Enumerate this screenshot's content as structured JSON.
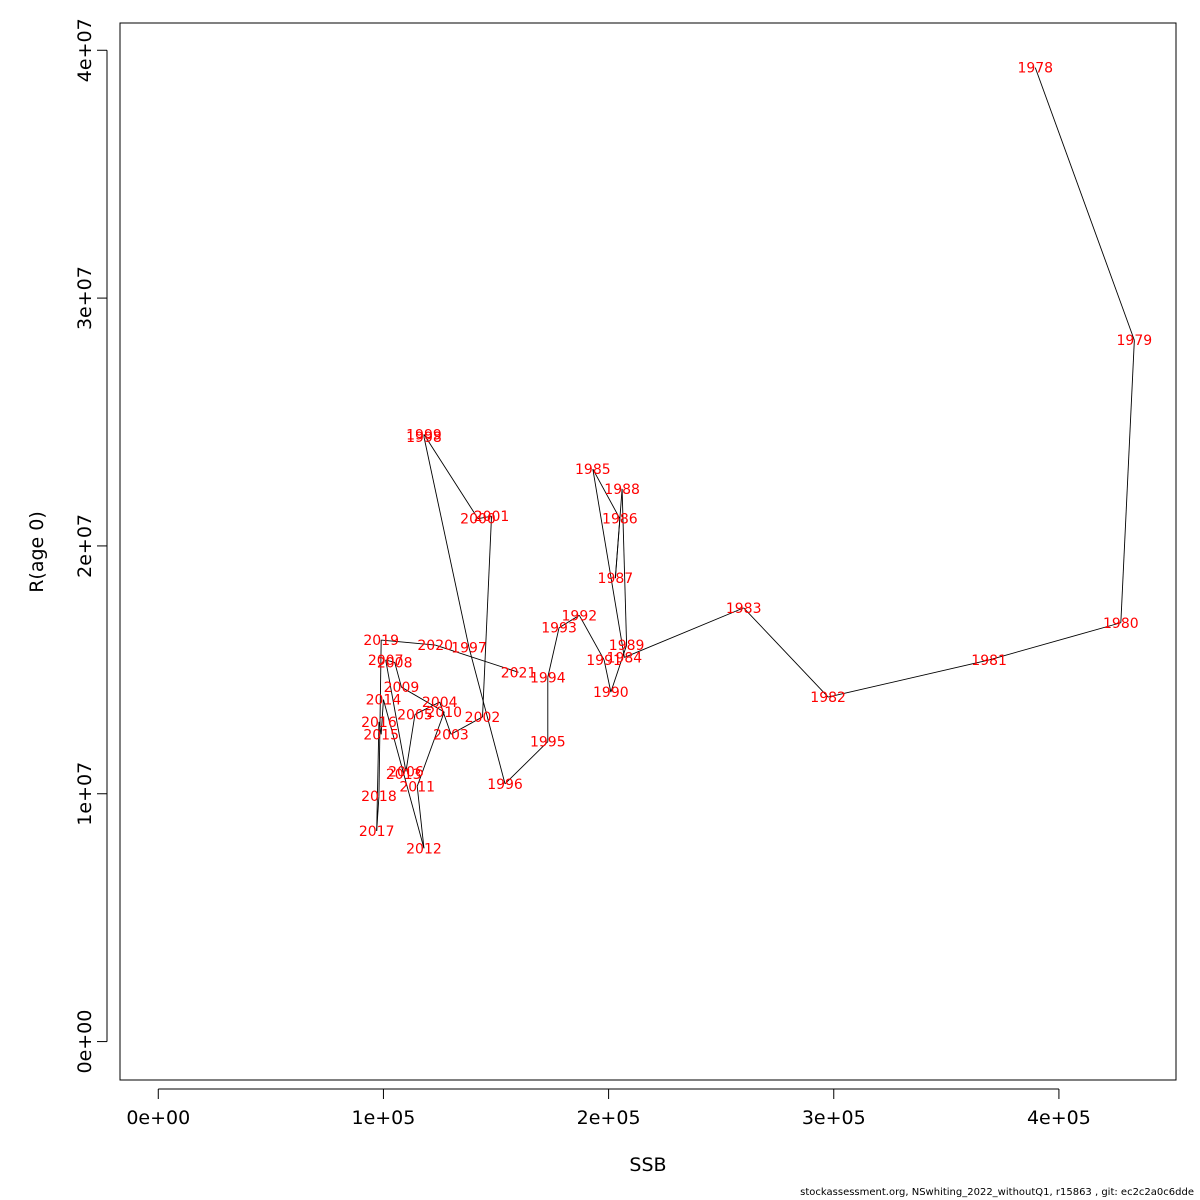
{
  "chart_data": {
    "type": "line",
    "xlabel": "SSB",
    "ylabel": "R(age 0)",
    "xlim": [
      -17000,
      452000
    ],
    "ylim": [
      -1550000,
      41100000
    ],
    "x_ticks": [
      0,
      100000,
      200000,
      300000,
      400000
    ],
    "x_tick_labels": [
      "0e+00",
      "1e+05",
      "2e+05",
      "3e+05",
      "4e+05"
    ],
    "y_ticks": [
      0,
      10000000,
      20000000,
      30000000,
      40000000
    ],
    "y_tick_labels": [
      "0e+00",
      "1e+07",
      "2e+07",
      "3e+07",
      "4e+07"
    ],
    "grid": false,
    "line_color": "#000000",
    "label_color": "#ff0000",
    "points": [
      {
        "year": "1978",
        "ssb": 389500,
        "r": 39300000
      },
      {
        "year": "1979",
        "ssb": 433500,
        "r": 28300000
      },
      {
        "year": "1980",
        "ssb": 427500,
        "r": 16900000
      },
      {
        "year": "1981",
        "ssb": 369000,
        "r": 15400000
      },
      {
        "year": "1982",
        "ssb": 297500,
        "r": 13900000
      },
      {
        "year": "1983",
        "ssb": 260000,
        "r": 17500000
      },
      {
        "year": "1984",
        "ssb": 207000,
        "r": 15500000
      },
      {
        "year": "1985",
        "ssb": 193000,
        "r": 23100000
      },
      {
        "year": "1986",
        "ssb": 205000,
        "r": 21100000
      },
      {
        "year": "1987",
        "ssb": 203000,
        "r": 18700000
      },
      {
        "year": "1988",
        "ssb": 206000,
        "r": 22300000
      },
      {
        "year": "1989",
        "ssb": 208000,
        "r": 16000000
      },
      {
        "year": "1990",
        "ssb": 201000,
        "r": 14100000
      },
      {
        "year": "1991",
        "ssb": 198000,
        "r": 15400000
      },
      {
        "year": "1992",
        "ssb": 187000,
        "r": 17200000
      },
      {
        "year": "1993",
        "ssb": 178000,
        "r": 16700000
      },
      {
        "year": "1994",
        "ssb": 173000,
        "r": 14700000
      },
      {
        "year": "1995",
        "ssb": 173000,
        "r": 12100000
      },
      {
        "year": "1996",
        "ssb": 154000,
        "r": 10400000
      },
      {
        "year": "1997",
        "ssb": 138000,
        "r": 15900000
      },
      {
        "year": "1998",
        "ssb": 118000,
        "r": 24400000
      },
      {
        "year": "1999",
        "ssb": 118000,
        "r": 24500000
      },
      {
        "year": "2000",
        "ssb": 142000,
        "r": 21100000
      },
      {
        "year": "2001",
        "ssb": 148000,
        "r": 21200000
      },
      {
        "year": "2002",
        "ssb": 144000,
        "r": 13100000
      },
      {
        "year": "2003",
        "ssb": 130000,
        "r": 12400000
      },
      {
        "year": "2004",
        "ssb": 125000,
        "r": 13700000
      },
      {
        "year": "2005",
        "ssb": 114000,
        "r": 13200000
      },
      {
        "year": "2006",
        "ssb": 110000,
        "r": 10900000
      },
      {
        "year": "2007",
        "ssb": 101000,
        "r": 15400000
      },
      {
        "year": "2008",
        "ssb": 105000,
        "r": 15300000
      },
      {
        "year": "2009",
        "ssb": 108000,
        "r": 14300000
      },
      {
        "year": "2010",
        "ssb": 127000,
        "r": 13300000
      },
      {
        "year": "2011",
        "ssb": 115000,
        "r": 10300000
      },
      {
        "year": "2012",
        "ssb": 118000,
        "r": 7800000
      },
      {
        "year": "2013",
        "ssb": 109000,
        "r": 10800000
      },
      {
        "year": "2014",
        "ssb": 100000,
        "r": 13800000
      },
      {
        "year": "2015",
        "ssb": 99000,
        "r": 12400000
      },
      {
        "year": "2016",
        "ssb": 98000,
        "r": 12900000
      },
      {
        "year": "2017",
        "ssb": 97000,
        "r": 8500000
      },
      {
        "year": "2018",
        "ssb": 98000,
        "r": 9900000
      },
      {
        "year": "2019",
        "ssb": 99000,
        "r": 16200000
      },
      {
        "year": "2020",
        "ssb": 123000,
        "r": 16000000
      },
      {
        "year": "2021",
        "ssb": 160000,
        "r": 14900000
      }
    ]
  },
  "footer": "stockassessment.org, NSwhiting_2022_withoutQ1, r15863 , git: ec2c2a0c6dde"
}
